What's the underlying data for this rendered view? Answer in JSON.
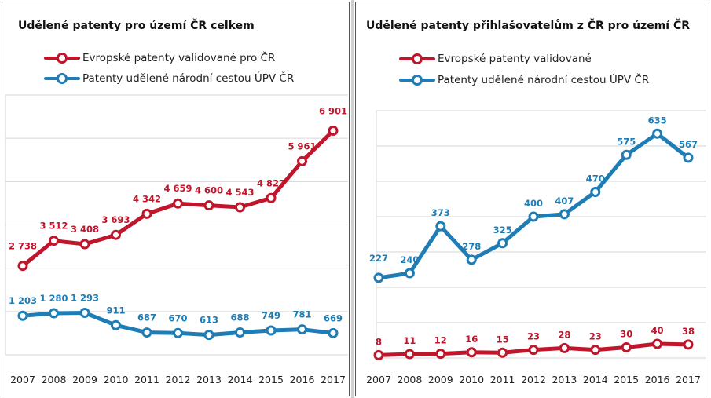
{
  "colors": {
    "red": "#c0162c",
    "blue": "#1f7db5",
    "grid": "#d6d6d6"
  },
  "chart_data": [
    {
      "type": "line",
      "title": "Udělené patenty pro území ČR celkem",
      "categories": [
        "2007",
        "2008",
        "2009",
        "2010",
        "2011",
        "2012",
        "2013",
        "2014",
        "2015",
        "2016",
        "2017"
      ],
      "ylim": [
        0,
        8000
      ],
      "grid": true,
      "series": [
        {
          "name": "Evropské patenty validované pro ČR",
          "color": "#c0162c",
          "values": [
            2738,
            3512,
            3408,
            3693,
            4342,
            4659,
            4600,
            4543,
            4827,
            5961,
            6901
          ],
          "labels": [
            "2 738",
            "3 512",
            "3 408",
            "3 693",
            "4 342",
            "4 659",
            "4 600",
            "4 543",
            "4 827",
            "5 961",
            "6 901"
          ]
        },
        {
          "name": "Patenty udělené národní cestou ÚPV ČR",
          "color": "#1f7db5",
          "values": [
            1203,
            1280,
            1293,
            911,
            687,
            670,
            613,
            688,
            749,
            781,
            669
          ],
          "labels": [
            "1 203",
            "1 280",
            "1 293",
            "911",
            "687",
            "670",
            "613",
            "688",
            "749",
            "781",
            "669"
          ]
        }
      ]
    },
    {
      "type": "line",
      "title": "Udělené patenty přihlašovatelům z ČR pro území ČR",
      "categories": [
        "2007",
        "2008",
        "2009",
        "2010",
        "2011",
        "2012",
        "2013",
        "2014",
        "2015",
        "2016",
        "2017"
      ],
      "ylim": [
        0,
        700
      ],
      "grid": true,
      "series": [
        {
          "name": "Evropské patenty validované",
          "color": "#c0162c",
          "values": [
            8,
            11,
            12,
            16,
            15,
            23,
            28,
            23,
            30,
            40,
            38
          ],
          "labels": [
            "8",
            "11",
            "12",
            "16",
            "15",
            "23",
            "28",
            "23",
            "30",
            "40",
            "38"
          ]
        },
        {
          "name": "Patenty udělené národní cestou ÚPV ČR",
          "color": "#1f7db5",
          "values": [
            227,
            240,
            373,
            278,
            325,
            400,
            407,
            470,
            575,
            635,
            567
          ],
          "labels": [
            "227",
            "240",
            "373",
            "278",
            "325",
            "400",
            "407",
            "470",
            "575",
            "635",
            "567"
          ]
        }
      ]
    }
  ]
}
